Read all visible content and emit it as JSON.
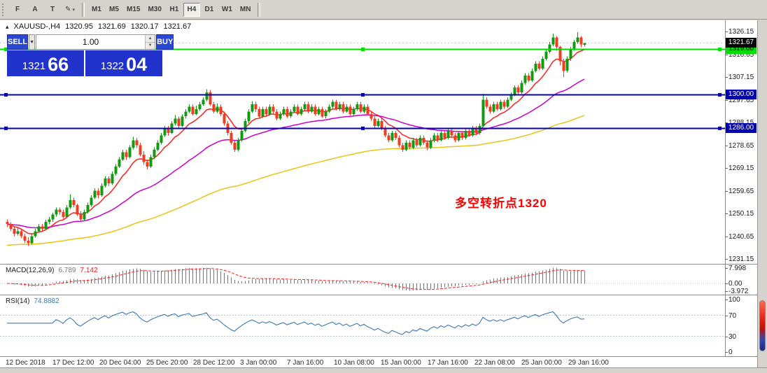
{
  "toolbar": {
    "tools": [
      {
        "label": "F",
        "name": "file-tool-button"
      },
      {
        "label": "A",
        "name": "arrow-tool-button"
      },
      {
        "label": "T",
        "name": "text-tool-button"
      },
      {
        "label": "✎",
        "name": "draw-tool-button",
        "dropdown": true
      }
    ],
    "timeframes": [
      {
        "label": "M1",
        "active": false
      },
      {
        "label": "M5",
        "active": false
      },
      {
        "label": "M15",
        "active": false
      },
      {
        "label": "M30",
        "active": false
      },
      {
        "label": "H1",
        "active": false
      },
      {
        "label": "H4",
        "active": true
      },
      {
        "label": "D1",
        "active": false
      },
      {
        "label": "W1",
        "active": false
      },
      {
        "label": "MN",
        "active": false
      }
    ]
  },
  "chart": {
    "info": {
      "symbol_period": "XAUUSD-,H4",
      "open": "1320.95",
      "high": "1321.69",
      "low": "1320.17",
      "close": "1321.67"
    },
    "annotation": {
      "text": "多空转折点1320",
      "color": "#ff0000"
    }
  },
  "trade_panel": {
    "sell_label": "SELL",
    "buy_label": "BUY",
    "volume": "1.00",
    "sell_price_main": "1321",
    "sell_price_pips": "66",
    "buy_price_main": "1322",
    "buy_price_pips": "04"
  },
  "macd_panel": {
    "label": "MACD(12,26,9)",
    "value_main": "6.789",
    "value_signal": "7.142"
  },
  "rsi_panel": {
    "label": "RSI(14)",
    "value": "74.8882"
  },
  "chart_data": {
    "type": "candlestick",
    "symbol": "XAUUSD-",
    "period": "H4",
    "up_color": "#109a10",
    "down_color": "#f03c20",
    "price_range": [
      1231.15,
      1326.15
    ],
    "axis_ticks": [
      1326.15,
      1316.65,
      1307.15,
      1297.65,
      1288.15,
      1278.65,
      1269.15,
      1259.65,
      1250.15,
      1240.65,
      1231.15
    ],
    "current_price": {
      "value": 1321.67,
      "bg": "#000000",
      "text": "#ffffff"
    },
    "hlines": [
      {
        "price": 1319.0,
        "label": "1319.00",
        "color": "#00dd00",
        "badge_text": "#000000",
        "name": "hline-1319"
      },
      {
        "price": 1300.0,
        "label": "1300.00",
        "color": "#0000b4",
        "badge_text": "#ffffff",
        "name": "hline-1300"
      },
      {
        "price": 1286.0,
        "label": "1286.00",
        "color": "#0000b4",
        "badge_text": "#ffffff",
        "name": "hline-1286"
      }
    ],
    "moving_averages": [
      {
        "period": 10,
        "color": "#ff2020"
      },
      {
        "period": 40,
        "color": "#cc00cc"
      },
      {
        "period": 120,
        "color": "#e9c518",
        "seed": 1237
      }
    ],
    "indicators": {
      "macd": {
        "params": "12,26,9",
        "range": [
          -3.972,
          7.998
        ],
        "scale_labels": [
          {
            "label": "7.998",
            "value": 7.998
          },
          {
            "label": "0.00",
            "value": 0
          },
          {
            "label": "-3.972",
            "value": -3.972
          }
        ],
        "histogram_color": "#777777",
        "signal_color": "#ff2020"
      },
      "rsi": {
        "period": 14,
        "range": [
          0,
          100
        ],
        "levels": [
          70,
          30
        ],
        "scale_labels": [
          {
            "label": "100",
            "value": 100
          },
          {
            "label": "70",
            "value": 70
          },
          {
            "label": "30",
            "value": 30
          },
          {
            "label": "0",
            "value": 0
          }
        ],
        "line_color": "#3b79b5"
      }
    },
    "time_labels": [
      "12 Dec 2018",
      "17 Dec 12:00",
      "20 Dec 04:00",
      "25 Dec 20:00",
      "28 Dec 12:00",
      "3 Jan 00:00",
      "7 Jan 16:00",
      "10 Jan 08:00",
      "15 Jan 00:00",
      "17 Jan 16:00",
      "22 Jan 08:00",
      "25 Jan 00:00",
      "29 Jan 16:00"
    ],
    "ohlc": [
      [
        1247,
        1248,
        1244.8,
        1246
      ],
      [
        1246,
        1246.8,
        1243,
        1244
      ],
      [
        1244,
        1245,
        1241,
        1242
      ],
      [
        1242,
        1244.5,
        1241.2,
        1243
      ],
      [
        1243,
        1243.6,
        1240,
        1241
      ],
      [
        1241,
        1242,
        1238,
        1239
      ],
      [
        1239,
        1240.5,
        1236.8,
        1238
      ],
      [
        1238,
        1242,
        1237.5,
        1241
      ],
      [
        1241,
        1244,
        1240.3,
        1243
      ],
      [
        1243,
        1246,
        1242.5,
        1245
      ],
      [
        1245,
        1246,
        1242.8,
        1244
      ],
      [
        1244,
        1247.8,
        1243.5,
        1247
      ],
      [
        1247,
        1249,
        1245.9,
        1248
      ],
      [
        1248,
        1250.8,
        1247,
        1250
      ],
      [
        1250,
        1253,
        1249.2,
        1252
      ],
      [
        1252,
        1253,
        1249.8,
        1251
      ],
      [
        1251,
        1252,
        1248.3,
        1249
      ],
      [
        1249,
        1254,
        1248.6,
        1253
      ],
      [
        1253,
        1258.5,
        1252.4,
        1256
      ],
      [
        1256,
        1257,
        1253,
        1254
      ],
      [
        1254,
        1254.6,
        1249.4,
        1250
      ],
      [
        1250,
        1251.5,
        1246.8,
        1248
      ],
      [
        1248,
        1252,
        1247.4,
        1251
      ],
      [
        1251,
        1255,
        1250.5,
        1254
      ],
      [
        1254,
        1258,
        1253.2,
        1257
      ],
      [
        1257,
        1261,
        1256.4,
        1260
      ],
      [
        1260,
        1261,
        1256.7,
        1258
      ],
      [
        1258,
        1263,
        1257.5,
        1262
      ],
      [
        1262,
        1266,
        1261.3,
        1265
      ],
      [
        1265,
        1266,
        1261.8,
        1263
      ],
      [
        1263,
        1268,
        1262.5,
        1267
      ],
      [
        1267,
        1271,
        1266.2,
        1270
      ],
      [
        1270,
        1274,
        1269.4,
        1273
      ],
      [
        1273,
        1277,
        1272.3,
        1276
      ],
      [
        1276,
        1277,
        1272.8,
        1274
      ],
      [
        1274,
        1279,
        1273.4,
        1278
      ],
      [
        1278,
        1282.4,
        1277.2,
        1281
      ],
      [
        1281,
        1282,
        1277.8,
        1279
      ],
      [
        1279,
        1280,
        1274.3,
        1275
      ],
      [
        1275,
        1276.5,
        1270.8,
        1272
      ],
      [
        1272,
        1273,
        1268.9,
        1270
      ],
      [
        1270,
        1275,
        1269.5,
        1274
      ],
      [
        1274,
        1278,
        1273.1,
        1277
      ],
      [
        1277,
        1281,
        1276.4,
        1280
      ],
      [
        1280,
        1284,
        1279.2,
        1283
      ],
      [
        1283,
        1287,
        1282.5,
        1286
      ],
      [
        1286,
        1287,
        1282.9,
        1284
      ],
      [
        1284,
        1289,
        1283.6,
        1288
      ],
      [
        1288,
        1291.5,
        1287.3,
        1290
      ],
      [
        1290,
        1291,
        1286.2,
        1287
      ],
      [
        1287,
        1292,
        1286.5,
        1291
      ],
      [
        1291,
        1294,
        1290.2,
        1293
      ],
      [
        1293,
        1296,
        1292.4,
        1295
      ],
      [
        1295,
        1296,
        1291.3,
        1292
      ],
      [
        1292,
        1295.5,
        1291.5,
        1294
      ],
      [
        1294,
        1297,
        1293.2,
        1296
      ],
      [
        1296,
        1299,
        1295.4,
        1298
      ],
      [
        1298,
        1302.4,
        1297.2,
        1301
      ],
      [
        1301,
        1302,
        1295.3,
        1296
      ],
      [
        1296,
        1297,
        1292.2,
        1293
      ],
      [
        1293,
        1296.5,
        1292.4,
        1295
      ],
      [
        1295,
        1296,
        1291.1,
        1292
      ],
      [
        1292,
        1293,
        1287.2,
        1288
      ],
      [
        1288,
        1289,
        1283.1,
        1284
      ],
      [
        1284,
        1285,
        1279.2,
        1280
      ],
      [
        1280,
        1281,
        1276.1,
        1277
      ],
      [
        1277,
        1282,
        1276.3,
        1281
      ],
      [
        1281,
        1286,
        1280.4,
        1285
      ],
      [
        1285,
        1290,
        1284.3,
        1289
      ],
      [
        1289,
        1294,
        1288.2,
        1293
      ],
      [
        1293,
        1297.3,
        1292.4,
        1296
      ],
      [
        1296,
        1297,
        1292.8,
        1294
      ],
      [
        1294,
        1295,
        1290.2,
        1291
      ],
      [
        1291,
        1295,
        1290.4,
        1294
      ],
      [
        1294,
        1295,
        1291.2,
        1292
      ],
      [
        1292,
        1296,
        1291.4,
        1295
      ],
      [
        1295,
        1296,
        1292.1,
        1293
      ],
      [
        1293,
        1294,
        1289.3,
        1290
      ],
      [
        1290,
        1293,
        1289.5,
        1292
      ],
      [
        1292,
        1295,
        1291.2,
        1294
      ],
      [
        1294,
        1295,
        1290.4,
        1291
      ],
      [
        1291,
        1294,
        1290.3,
        1293
      ],
      [
        1293,
        1296,
        1292.5,
        1295
      ],
      [
        1295,
        1296,
        1291.4,
        1292
      ],
      [
        1292,
        1295,
        1291.3,
        1294
      ],
      [
        1294,
        1297,
        1293.4,
        1296
      ],
      [
        1296,
        1297,
        1292.3,
        1293
      ],
      [
        1293,
        1296,
        1292.4,
        1295
      ],
      [
        1295,
        1296,
        1291.2,
        1292
      ],
      [
        1292,
        1295,
        1291.3,
        1294
      ],
      [
        1294,
        1295,
        1290.4,
        1291
      ],
      [
        1291,
        1294,
        1290.2,
        1293
      ],
      [
        1293,
        1296,
        1292.4,
        1295
      ],
      [
        1295,
        1298,
        1294.3,
        1297
      ],
      [
        1297,
        1298,
        1293.4,
        1294
      ],
      [
        1294,
        1297,
        1293.2,
        1296
      ],
      [
        1296,
        1297,
        1292.3,
        1293
      ],
      [
        1293,
        1296,
        1292.5,
        1295
      ],
      [
        1295,
        1296,
        1291.4,
        1292
      ],
      [
        1292,
        1295,
        1291.2,
        1294
      ],
      [
        1294,
        1297,
        1293.3,
        1296
      ],
      [
        1296,
        1297,
        1292.4,
        1293
      ],
      [
        1293,
        1296,
        1292.2,
        1295
      ],
      [
        1295,
        1296,
        1291.3,
        1292
      ],
      [
        1292,
        1293,
        1289.2,
        1290
      ],
      [
        1290,
        1291,
        1286.3,
        1287
      ],
      [
        1287,
        1290,
        1286.4,
        1289
      ],
      [
        1289,
        1290,
        1285.2,
        1286
      ],
      [
        1286,
        1287,
        1282.3,
        1283
      ],
      [
        1283,
        1284,
        1280.1,
        1281
      ],
      [
        1281,
        1285,
        1280.4,
        1284
      ],
      [
        1284,
        1285,
        1281.2,
        1282
      ],
      [
        1282,
        1283,
        1278.1,
        1279
      ],
      [
        1279,
        1280,
        1276.2,
        1277
      ],
      [
        1277,
        1281,
        1276.4,
        1280
      ],
      [
        1280,
        1281,
        1277.2,
        1278
      ],
      [
        1278,
        1282,
        1277.3,
        1281
      ],
      [
        1281,
        1282,
        1278.2,
        1279
      ],
      [
        1279,
        1283,
        1278.4,
        1282
      ],
      [
        1282,
        1283,
        1279.1,
        1280
      ],
      [
        1280,
        1281,
        1276.9,
        1278
      ],
      [
        1278,
        1282,
        1277.4,
        1281
      ],
      [
        1281,
        1284,
        1280.3,
        1283
      ],
      [
        1283,
        1284,
        1280.2,
        1281
      ],
      [
        1281,
        1285,
        1280.5,
        1284
      ],
      [
        1284,
        1285,
        1281.3,
        1282
      ],
      [
        1282,
        1286,
        1281.4,
        1285
      ],
      [
        1285,
        1286,
        1282.2,
        1283
      ],
      [
        1283,
        1284,
        1280.3,
        1281
      ],
      [
        1281,
        1285,
        1280.4,
        1284
      ],
      [
        1284,
        1285,
        1281.2,
        1282
      ],
      [
        1282,
        1286,
        1281.3,
        1285
      ],
      [
        1285,
        1286,
        1282.4,
        1283
      ],
      [
        1283,
        1287,
        1282.5,
        1286
      ],
      [
        1286,
        1287,
        1283.2,
        1284
      ],
      [
        1284,
        1288,
        1283.4,
        1287
      ],
      [
        1287,
        1300.5,
        1286.6,
        1298
      ],
      [
        1298,
        1299,
        1294.2,
        1295
      ],
      [
        1295,
        1296,
        1292.1,
        1293
      ],
      [
        1293,
        1297,
        1292.4,
        1296
      ],
      [
        1296,
        1297,
        1293.2,
        1294
      ],
      [
        1294,
        1298,
        1293.4,
        1297
      ],
      [
        1297,
        1298,
        1294.1,
        1295
      ],
      [
        1295,
        1299,
        1294.4,
        1298
      ],
      [
        1298,
        1301,
        1297.3,
        1300
      ],
      [
        1300,
        1304,
        1299.4,
        1303
      ],
      [
        1303,
        1304,
        1300.2,
        1301
      ],
      [
        1301,
        1306,
        1300.4,
        1305
      ],
      [
        1305,
        1309,
        1304.3,
        1308
      ],
      [
        1308,
        1309,
        1305.2,
        1306
      ],
      [
        1306,
        1311,
        1305.4,
        1310
      ],
      [
        1310,
        1314,
        1309.3,
        1313
      ],
      [
        1313,
        1314,
        1310.2,
        1311
      ],
      [
        1311,
        1316,
        1310.4,
        1315
      ],
      [
        1315,
        1319,
        1314.3,
        1318
      ],
      [
        1318,
        1322,
        1317.2,
        1321
      ],
      [
        1321,
        1325.5,
        1320.3,
        1324
      ],
      [
        1324,
        1324.5,
        1318.4,
        1320
      ],
      [
        1320,
        1320.5,
        1312.2,
        1314
      ],
      [
        1314,
        1315,
        1307.4,
        1310
      ],
      [
        1310,
        1316,
        1309.3,
        1315
      ],
      [
        1315,
        1320,
        1314.2,
        1319
      ],
      [
        1319,
        1323,
        1318.4,
        1322
      ],
      [
        1322,
        1326.2,
        1321.3,
        1324
      ],
      [
        1324,
        1324.5,
        1319.8,
        1321
      ],
      [
        1320.95,
        1321.69,
        1320.17,
        1321.67
      ]
    ]
  }
}
